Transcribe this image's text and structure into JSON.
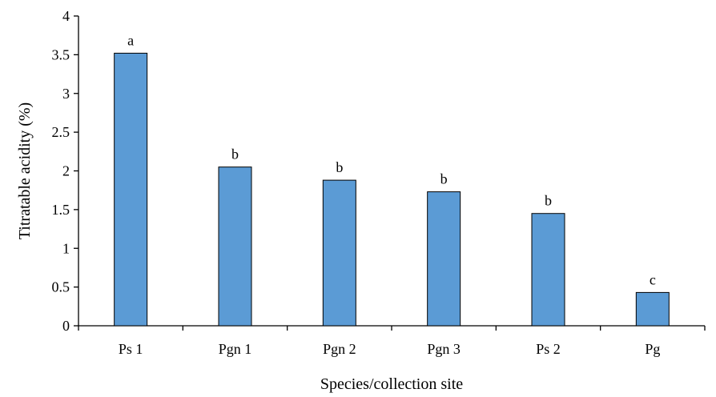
{
  "chart_data": {
    "type": "bar",
    "title": "",
    "xlabel": "Species/collection site",
    "ylabel": "Titratable acidity (%)",
    "ylim": [
      0,
      4
    ],
    "yticks": [
      0,
      0.5,
      1,
      1.5,
      2,
      2.5,
      3,
      3.5,
      4
    ],
    "grid": false,
    "legend": "none",
    "categories": [
      "Ps 1",
      "Pgn 1",
      "Pgn 2",
      "Pgn 3",
      "Ps 2",
      "Pg"
    ],
    "values": [
      3.52,
      2.05,
      1.88,
      1.73,
      1.45,
      0.43
    ],
    "significance_letters": [
      "a",
      "b",
      "b",
      "b",
      "b",
      "c"
    ],
    "bar_color": "#5B9BD5",
    "bar_edge_color": "#000000"
  }
}
